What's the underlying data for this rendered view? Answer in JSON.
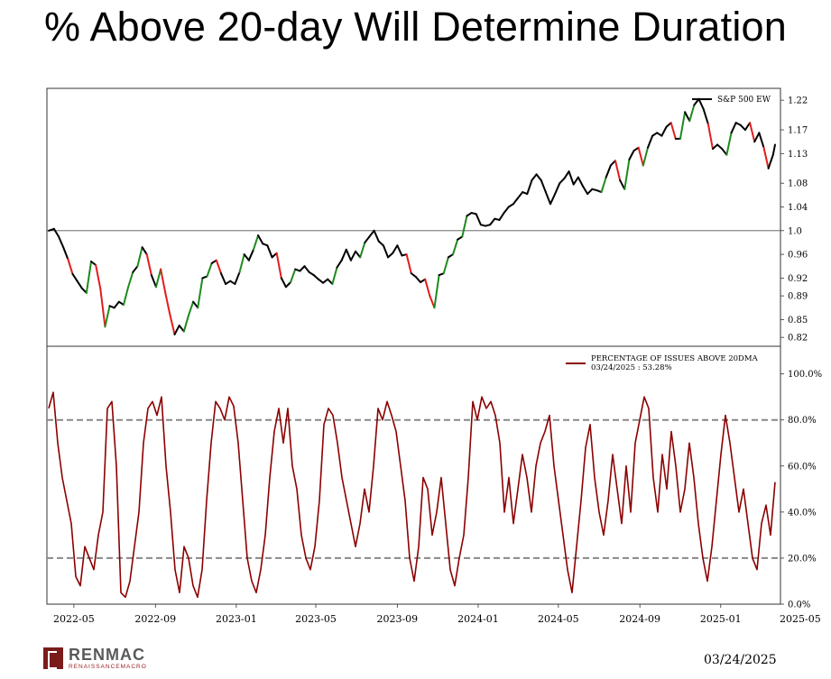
{
  "slide": {
    "title": "% Above 20-day Will Determine Duration",
    "footer_date": "03/24/2025",
    "logo": {
      "name": "RENMAC",
      "tagline": "RENAISSANCEMACRO"
    }
  },
  "chart_data": [
    {
      "type": "line",
      "panel": "top",
      "series": [
        {
          "name": "S&P 500 EW",
          "color": "#000000",
          "highlight_colors": {
            "up": "#1e8a1e",
            "down": "#e31c1c"
          },
          "points": [
            [
              "2022-03-24",
              1.0
            ],
            [
              "2022-04-01",
              1.003
            ],
            [
              "2022-04-08",
              0.99
            ],
            [
              "2022-04-15",
              0.972
            ],
            [
              "2022-04-22",
              0.952
            ],
            [
              "2022-04-29",
              0.927
            ],
            [
              "2022-05-06",
              0.915
            ],
            [
              "2022-05-13",
              0.903
            ],
            [
              "2022-05-20",
              0.895
            ],
            [
              "2022-05-27",
              0.948
            ],
            [
              "2022-06-03",
              0.942
            ],
            [
              "2022-06-10",
              0.902
            ],
            [
              "2022-06-17",
              0.838
            ],
            [
              "2022-06-24",
              0.873
            ],
            [
              "2022-07-01",
              0.87
            ],
            [
              "2022-07-08",
              0.88
            ],
            [
              "2022-07-15",
              0.875
            ],
            [
              "2022-07-22",
              0.905
            ],
            [
              "2022-07-29",
              0.93
            ],
            [
              "2022-08-05",
              0.94
            ],
            [
              "2022-08-12",
              0.972
            ],
            [
              "2022-08-19",
              0.96
            ],
            [
              "2022-08-26",
              0.925
            ],
            [
              "2022-09-02",
              0.905
            ],
            [
              "2022-09-09",
              0.935
            ],
            [
              "2022-09-16",
              0.895
            ],
            [
              "2022-09-23",
              0.858
            ],
            [
              "2022-09-30",
              0.825
            ],
            [
              "2022-10-07",
              0.84
            ],
            [
              "2022-10-14",
              0.83
            ],
            [
              "2022-10-21",
              0.857
            ],
            [
              "2022-10-28",
              0.88
            ],
            [
              "2022-11-04",
              0.87
            ],
            [
              "2022-11-11",
              0.92
            ],
            [
              "2022-11-18",
              0.923
            ],
            [
              "2022-11-25",
              0.945
            ],
            [
              "2022-12-02",
              0.95
            ],
            [
              "2022-12-09",
              0.928
            ],
            [
              "2022-12-16",
              0.91
            ],
            [
              "2022-12-23",
              0.915
            ],
            [
              "2022-12-30",
              0.91
            ],
            [
              "2023-01-06",
              0.93
            ],
            [
              "2023-01-13",
              0.96
            ],
            [
              "2023-01-20",
              0.95
            ],
            [
              "2023-01-27",
              0.968
            ],
            [
              "2023-02-03",
              0.992
            ],
            [
              "2023-02-10",
              0.978
            ],
            [
              "2023-02-17",
              0.975
            ],
            [
              "2023-02-24",
              0.955
            ],
            [
              "2023-03-03",
              0.962
            ],
            [
              "2023-03-10",
              0.92
            ],
            [
              "2023-03-17",
              0.905
            ],
            [
              "2023-03-24",
              0.913
            ],
            [
              "2023-03-31",
              0.935
            ],
            [
              "2023-04-07",
              0.932
            ],
            [
              "2023-04-14",
              0.94
            ],
            [
              "2023-04-21",
              0.93
            ],
            [
              "2023-04-28",
              0.925
            ],
            [
              "2023-05-05",
              0.918
            ],
            [
              "2023-05-12",
              0.912
            ],
            [
              "2023-05-19",
              0.918
            ],
            [
              "2023-05-26",
              0.91
            ],
            [
              "2023-06-02",
              0.938
            ],
            [
              "2023-06-09",
              0.95
            ],
            [
              "2023-06-16",
              0.968
            ],
            [
              "2023-06-23",
              0.95
            ],
            [
              "2023-06-30",
              0.965
            ],
            [
              "2023-07-07",
              0.955
            ],
            [
              "2023-07-14",
              0.98
            ],
            [
              "2023-07-21",
              0.99
            ],
            [
              "2023-07-28",
              1.0
            ],
            [
              "2023-08-04",
              0.982
            ],
            [
              "2023-08-11",
              0.975
            ],
            [
              "2023-08-18",
              0.955
            ],
            [
              "2023-08-25",
              0.962
            ],
            [
              "2023-09-01",
              0.975
            ],
            [
              "2023-09-08",
              0.958
            ],
            [
              "2023-09-15",
              0.96
            ],
            [
              "2023-09-22",
              0.928
            ],
            [
              "2023-09-29",
              0.922
            ],
            [
              "2023-10-06",
              0.913
            ],
            [
              "2023-10-13",
              0.918
            ],
            [
              "2023-10-20",
              0.89
            ],
            [
              "2023-10-27",
              0.87
            ],
            [
              "2023-11-03",
              0.925
            ],
            [
              "2023-11-10",
              0.928
            ],
            [
              "2023-11-17",
              0.955
            ],
            [
              "2023-11-24",
              0.96
            ],
            [
              "2023-12-01",
              0.985
            ],
            [
              "2023-12-08",
              0.99
            ],
            [
              "2023-12-15",
              1.025
            ],
            [
              "2023-12-22",
              1.03
            ],
            [
              "2023-12-29",
              1.028
            ],
            [
              "2024-01-05",
              1.01
            ],
            [
              "2024-01-12",
              1.008
            ],
            [
              "2024-01-19",
              1.01
            ],
            [
              "2024-01-26",
              1.02
            ],
            [
              "2024-02-02",
              1.018
            ],
            [
              "2024-02-09",
              1.03
            ],
            [
              "2024-02-16",
              1.04
            ],
            [
              "2024-02-23",
              1.045
            ],
            [
              "2024-03-01",
              1.055
            ],
            [
              "2024-03-08",
              1.065
            ],
            [
              "2024-03-15",
              1.062
            ],
            [
              "2024-03-22",
              1.085
            ],
            [
              "2024-03-29",
              1.095
            ],
            [
              "2024-04-05",
              1.085
            ],
            [
              "2024-04-12",
              1.065
            ],
            [
              "2024-04-19",
              1.045
            ],
            [
              "2024-04-26",
              1.062
            ],
            [
              "2024-05-03",
              1.08
            ],
            [
              "2024-05-10",
              1.088
            ],
            [
              "2024-05-17",
              1.1
            ],
            [
              "2024-05-24",
              1.078
            ],
            [
              "2024-05-31",
              1.09
            ],
            [
              "2024-06-07",
              1.075
            ],
            [
              "2024-06-14",
              1.062
            ],
            [
              "2024-06-21",
              1.07
            ],
            [
              "2024-06-28",
              1.068
            ],
            [
              "2024-07-05",
              1.065
            ],
            [
              "2024-07-12",
              1.09
            ],
            [
              "2024-07-19",
              1.11
            ],
            [
              "2024-07-26",
              1.118
            ],
            [
              "2024-08-02",
              1.085
            ],
            [
              "2024-08-09",
              1.07
            ],
            [
              "2024-08-16",
              1.12
            ],
            [
              "2024-08-23",
              1.135
            ],
            [
              "2024-08-30",
              1.14
            ],
            [
              "2024-09-06",
              1.11
            ],
            [
              "2024-09-13",
              1.14
            ],
            [
              "2024-09-20",
              1.16
            ],
            [
              "2024-09-27",
              1.165
            ],
            [
              "2024-10-04",
              1.16
            ],
            [
              "2024-10-11",
              1.175
            ],
            [
              "2024-10-18",
              1.182
            ],
            [
              "2024-10-25",
              1.155
            ],
            [
              "2024-11-01",
              1.155
            ],
            [
              "2024-11-08",
              1.2
            ],
            [
              "2024-11-15",
              1.185
            ],
            [
              "2024-11-22",
              1.212
            ],
            [
              "2024-11-29",
              1.222
            ],
            [
              "2024-12-06",
              1.205
            ],
            [
              "2024-12-13",
              1.18
            ],
            [
              "2024-12-20",
              1.138
            ],
            [
              "2024-12-27",
              1.145
            ],
            [
              "2025-01-03",
              1.138
            ],
            [
              "2025-01-10",
              1.128
            ],
            [
              "2025-01-17",
              1.165
            ],
            [
              "2025-01-24",
              1.182
            ],
            [
              "2025-01-31",
              1.178
            ],
            [
              "2025-02-07",
              1.17
            ],
            [
              "2025-02-14",
              1.182
            ],
            [
              "2025-02-21",
              1.15
            ],
            [
              "2025-02-28",
              1.165
            ],
            [
              "2025-03-07",
              1.14
            ],
            [
              "2025-03-14",
              1.105
            ],
            [
              "2025-03-21",
              1.128
            ],
            [
              "2025-03-24",
              1.145
            ]
          ]
        }
      ],
      "y_ticks": [
        "0.82",
        "0.85",
        "0.89",
        "0.92",
        "0.96",
        "1.0",
        "1.04",
        "1.08",
        "1.13",
        "1.17",
        "1.22"
      ],
      "reference_line": 1.0,
      "ylim": [
        0.805,
        1.24
      ],
      "legend": "top-right",
      "grid": false
    },
    {
      "type": "line",
      "panel": "bottom",
      "series": [
        {
          "name": "PERCENTAGE OF ISSUES ABOVE 20DMA",
          "label": "03/24/2025 : 53.28%",
          "color": "#8b0000",
          "values": [
            85,
            92,
            70,
            55,
            45,
            35,
            12,
            8,
            25,
            20,
            15,
            30,
            40,
            85,
            88,
            60,
            5,
            3,
            10,
            25,
            40,
            70,
            85,
            88,
            82,
            90,
            60,
            40,
            15,
            5,
            25,
            20,
            8,
            3,
            15,
            45,
            70,
            88,
            85,
            80,
            90,
            86,
            70,
            45,
            20,
            10,
            5,
            15,
            30,
            55,
            75,
            85,
            70,
            85,
            60,
            50,
            30,
            20,
            15,
            25,
            45,
            78,
            85,
            82,
            70,
            55,
            45,
            35,
            25,
            35,
            50,
            40,
            60,
            85,
            80,
            88,
            82,
            75,
            60,
            45,
            20,
            10,
            25,
            55,
            50,
            30,
            40,
            55,
            35,
            15,
            8,
            20,
            30,
            55,
            88,
            80,
            90,
            85,
            88,
            82,
            70,
            40,
            55,
            35,
            50,
            65,
            55,
            40,
            60,
            70,
            75,
            82,
            60,
            45,
            30,
            15,
            5,
            25,
            45,
            68,
            78,
            55,
            40,
            30,
            45,
            65,
            50,
            35,
            60,
            40,
            70,
            80,
            90,
            85,
            55,
            40,
            65,
            50,
            75,
            60,
            40,
            50,
            70,
            55,
            35,
            20,
            10,
            25,
            45,
            65,
            82,
            70,
            55,
            40,
            50,
            35,
            20,
            15,
            35,
            43,
            30,
            53
          ]
        }
      ],
      "y_ticks": [
        "0.0%",
        "20.0%",
        "40.0%",
        "60.0%",
        "80.0%",
        "100.0%"
      ],
      "reference_lines": [
        20,
        80
      ],
      "ylim": [
        0,
        112
      ],
      "legend": "top-right",
      "grid": false
    }
  ],
  "x_axis": {
    "start": "2022-03-24",
    "end": "2025-03-24",
    "tick_labels": [
      "2022-05",
      "2022-09",
      "2023-01",
      "2023-05",
      "2023-09",
      "2024-01",
      "2024-05",
      "2024-09",
      "2025-01",
      "2025-05"
    ]
  }
}
